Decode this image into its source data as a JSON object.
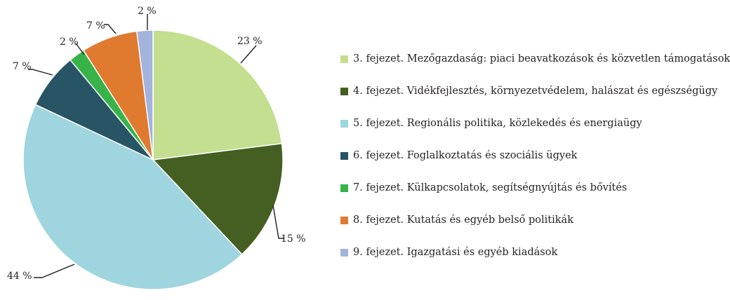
{
  "chart_data": {
    "type": "pie",
    "title": "",
    "categories": [
      "3. fejezet. Mezőgazdaság: piaci beavatkozások és közvetlen támogatások",
      "4. fejezet. Vidékfejlesztés, környezetvédelem, halászat és egészségügy",
      "5. fejezet. Regionális politika, közlekedés és energiaügy",
      "6. fejezet. Foglalkoztatás és szociális ügyek",
      "7. fejezet. Külkapcsolatok, segítségnyújtás és bővítés",
      "8. fejezet. Kutatás és egyéb belső politikák",
      "9. fejezet. Igazgatási és egyéb kiadások"
    ],
    "values": [
      23,
      15,
      44,
      7,
      2,
      7,
      2
    ],
    "data_labels": [
      "23 %",
      "15 %",
      "44 %",
      "7 %",
      "2 %",
      "7 %",
      "2 %"
    ],
    "colors": [
      "#c3df8f",
      "#455e22",
      "#9fd5df",
      "#275565",
      "#37b34a",
      "#df7a2f",
      "#a3b3de"
    ],
    "legend_position": "right"
  }
}
